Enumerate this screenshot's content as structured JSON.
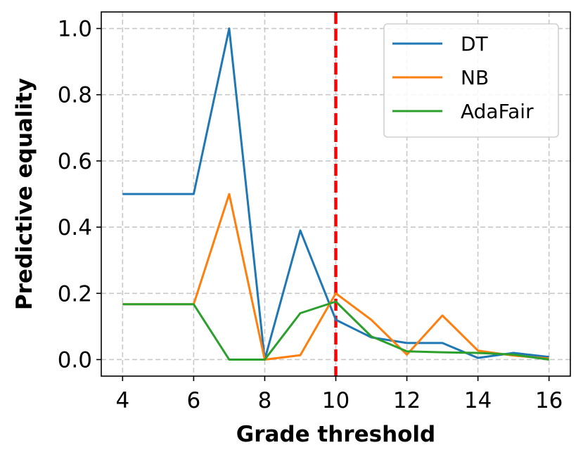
{
  "chart_data": {
    "type": "line",
    "title": "",
    "xlabel": "Grade threshold",
    "ylabel": "Predictive equality",
    "xlim": [
      3.4,
      16.6
    ],
    "ylim": [
      -0.05,
      1.05
    ],
    "x_ticks": [
      4,
      6,
      8,
      10,
      12,
      14,
      16
    ],
    "x_tick_labels": [
      "4",
      "6",
      "8",
      "10",
      "12",
      "14",
      "16"
    ],
    "y_ticks": [
      0.0,
      0.2,
      0.4,
      0.6,
      0.8,
      1.0
    ],
    "y_tick_labels": [
      "0.0",
      "0.2",
      "0.4",
      "0.6",
      "0.8",
      "1.0"
    ],
    "grid": true,
    "legend_position": "top-right",
    "x": [
      4,
      5,
      6,
      7,
      8,
      9,
      10,
      11,
      12,
      13,
      14,
      15,
      16
    ],
    "series": [
      {
        "name": "DT",
        "color": "#1f77b4",
        "values": [
          0.5,
          0.5,
          0.5,
          1.0,
          0.0,
          0.39,
          0.12,
          0.067,
          0.05,
          0.05,
          0.005,
          0.02,
          0.008
        ]
      },
      {
        "name": "NB",
        "color": "#ff7f0e",
        "values": [
          0.167,
          0.167,
          0.167,
          0.5,
          0.0,
          0.013,
          0.2,
          0.12,
          0.015,
          0.133,
          0.027,
          0.012,
          0.003
        ]
      },
      {
        "name": "AdaFair",
        "color": "#2ca02c",
        "values": [
          0.167,
          0.167,
          0.167,
          0.0,
          0.0,
          0.14,
          0.175,
          0.07,
          0.025,
          0.022,
          0.02,
          0.015,
          0.0
        ]
      }
    ],
    "reference_line": {
      "x": 10,
      "color": "#ff0000",
      "style": "dashed"
    }
  }
}
